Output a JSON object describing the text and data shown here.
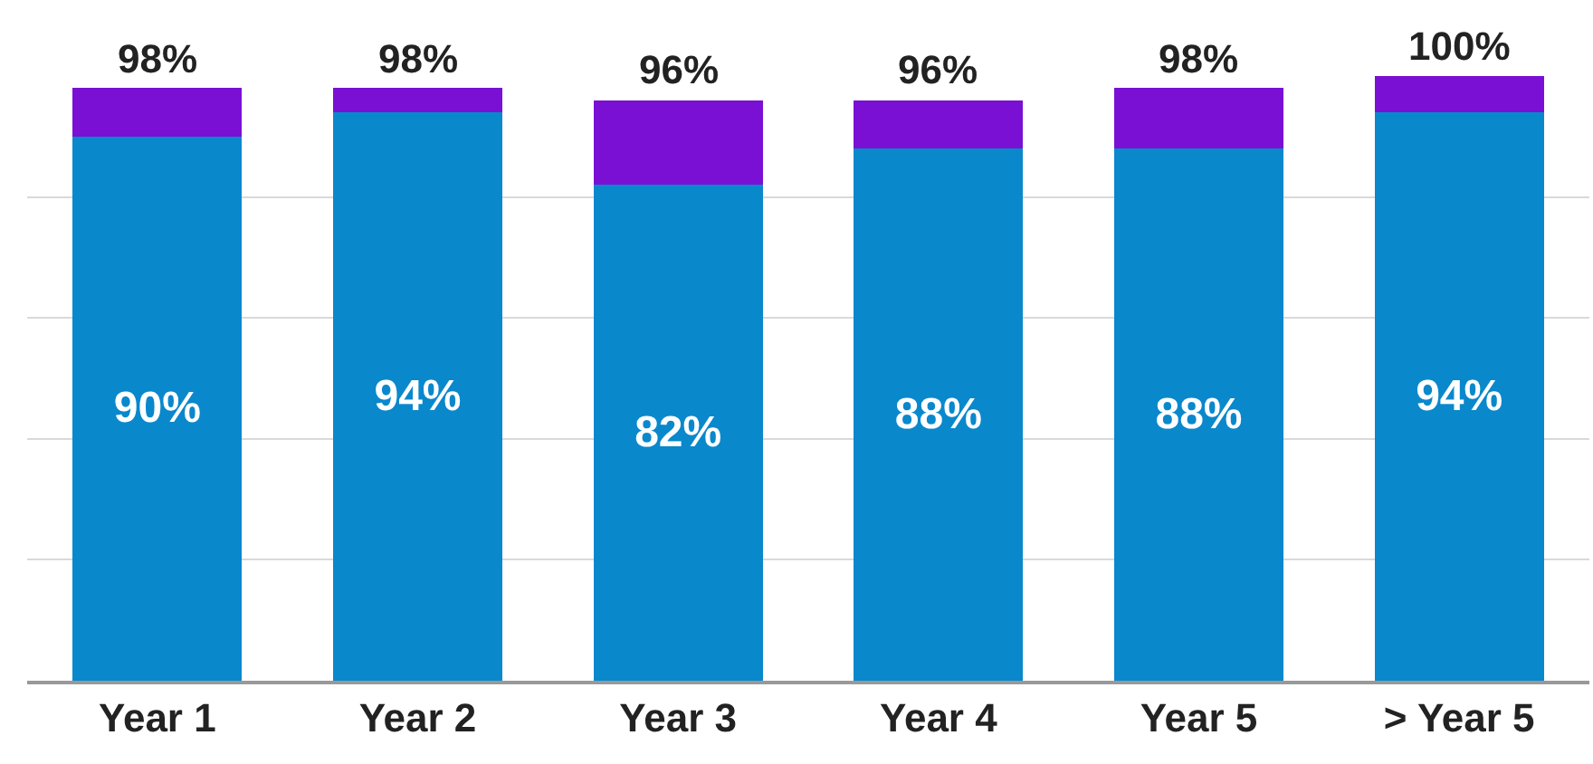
{
  "chart_data": {
    "type": "bar",
    "stacked": true,
    "categories": [
      "Year 1",
      "Year 2",
      "Year 3",
      "Year 4",
      "Year 5",
      "> Year 5"
    ],
    "series": [
      {
        "color": "#0a88cc",
        "values": [
          90,
          94,
          82,
          88,
          88,
          94
        ],
        "value_labels": [
          "90%",
          "94%",
          "82%",
          "88%",
          "88%",
          "94%"
        ]
      },
      {
        "color": "#7a10d4",
        "values": [
          8,
          4,
          14,
          8,
          10,
          6
        ]
      }
    ],
    "totals": [
      "98%",
      "98%",
      "96%",
      "96%",
      "98%",
      "100%"
    ],
    "ylim": [
      0,
      100
    ],
    "yticks": [
      {
        "value": 0,
        "label": null
      },
      {
        "value": 20,
        "label": null
      },
      {
        "value": 40,
        "label": null
      },
      {
        "value": 60,
        "label": null
      },
      {
        "value": 80,
        "label": null
      }
    ],
    "tick_labels": "x",
    "grid": "y",
    "legend": false
  }
}
